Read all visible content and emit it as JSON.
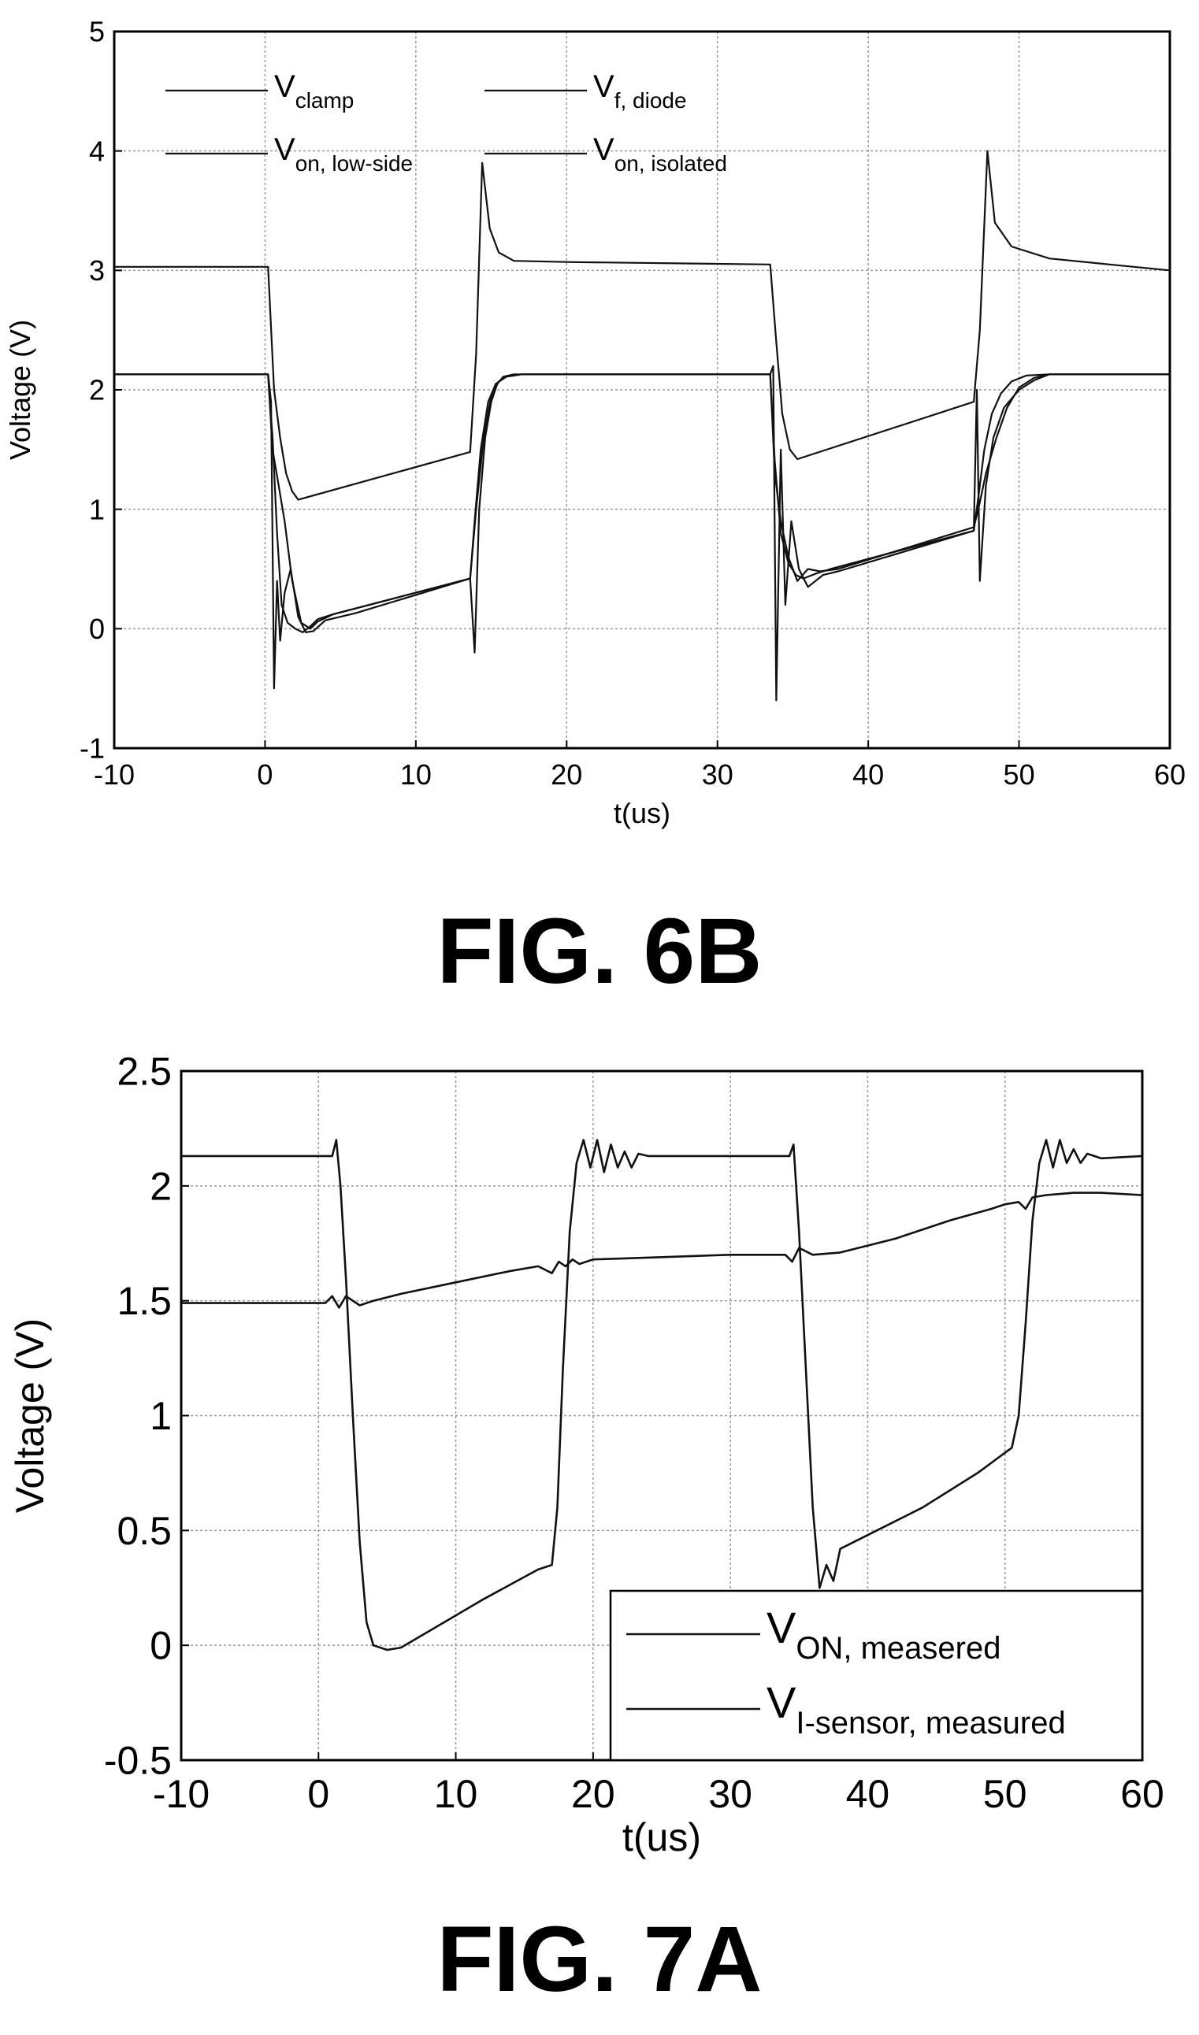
{
  "figures": [
    {
      "caption": "FIG. 6B"
    },
    {
      "caption": "FIG. 7A"
    }
  ],
  "chart_data": [
    {
      "type": "line",
      "title": "",
      "xlabel": "t(us)",
      "ylabel": "Voltage (V)",
      "xlim": [
        -10,
        60
      ],
      "ylim": [
        -1,
        5
      ],
      "xticks": [
        -10,
        0,
        10,
        20,
        30,
        40,
        50,
        60
      ],
      "yticks": [
        -1,
        0,
        1,
        2,
        3,
        4,
        5
      ],
      "grid": true,
      "legend_position": "top-left",
      "legend_columns": 2,
      "series": [
        {
          "name": "V_clamp",
          "label_main": "V",
          "label_sub": "clamp",
          "x": [
            -10,
            0.2,
            0.6,
            1.0,
            1.4,
            1.8,
            2.2,
            13.6,
            14.0,
            14.4,
            14.9,
            15.5,
            16.5,
            20,
            33.5,
            33.9,
            34.3,
            34.8,
            35.3,
            47.0,
            47.4,
            47.9,
            48.4,
            49.5,
            52,
            56,
            60
          ],
          "y": [
            3.03,
            3.03,
            2.0,
            1.6,
            1.3,
            1.15,
            1.08,
            1.48,
            2.3,
            3.9,
            3.35,
            3.15,
            3.08,
            3.07,
            3.05,
            2.4,
            1.8,
            1.5,
            1.42,
            1.9,
            2.5,
            4.0,
            3.4,
            3.2,
            3.1,
            3.05,
            3.0
          ]
        },
        {
          "name": "V_f, diode",
          "label_main": "V",
          "label_sub": "f, diode",
          "x": [
            -10,
            0.2,
            0.5,
            0.8,
            1.1,
            1.5,
            2.0,
            2.5,
            3.0,
            3.5,
            4.5,
            13.6,
            14.0,
            14.5,
            15.0,
            15.5,
            16.0,
            17.0,
            20,
            33.5,
            33.8,
            34.2,
            34.7,
            35.2,
            35.7,
            36.5,
            37.5,
            47.0,
            47.3,
            47.7,
            48.2,
            48.8,
            49.5,
            50.5,
            52,
            60
          ],
          "y": [
            2.13,
            2.13,
            1.6,
            0.8,
            0.2,
            0.05,
            0.0,
            -0.03,
            0.02,
            0.08,
            0.12,
            0.42,
            1.0,
            1.6,
            1.95,
            2.07,
            2.11,
            2.13,
            2.13,
            2.13,
            1.4,
            0.8,
            0.55,
            0.45,
            0.42,
            0.46,
            0.5,
            0.82,
            1.1,
            1.5,
            1.8,
            1.97,
            2.07,
            2.12,
            2.13,
            2.13
          ]
        },
        {
          "name": "V_on, low-side",
          "label_main": "V",
          "label_sub": "on, low-side",
          "x": [
            -10,
            0.2,
            0.4,
            0.6,
            0.8,
            1.0,
            1.3,
            1.7,
            2.2,
            2.7,
            3.2,
            4.0,
            6.0,
            13.6,
            13.9,
            14.2,
            14.6,
            15.0,
            15.4,
            15.8,
            16.5,
            20,
            33.5,
            33.7,
            33.9,
            34.2,
            34.5,
            34.9,
            35.4,
            36.0,
            37.0,
            38.0,
            47.0,
            47.2,
            47.4,
            47.8,
            48.3,
            49.0,
            50.0,
            51.0,
            52.0,
            60
          ],
          "y": [
            2.13,
            2.13,
            1.9,
            -0.5,
            0.4,
            -0.1,
            0.3,
            0.5,
            0.1,
            -0.03,
            -0.02,
            0.07,
            0.13,
            0.42,
            -0.2,
            1.0,
            1.6,
            1.9,
            2.05,
            2.11,
            2.13,
            2.13,
            2.13,
            2.2,
            -0.6,
            1.5,
            0.2,
            0.9,
            0.5,
            0.35,
            0.45,
            0.48,
            0.82,
            2.0,
            0.4,
            1.2,
            1.6,
            1.85,
            2.0,
            2.08,
            2.13,
            2.13
          ]
        },
        {
          "name": "V_on, isolated",
          "label_main": "V",
          "label_sub": "on, isolated",
          "x": [
            -10,
            0.2,
            0.5,
            0.9,
            1.3,
            1.8,
            2.4,
            3.0,
            3.5,
            4.5,
            13.6,
            13.9,
            14.3,
            14.8,
            15.3,
            16.0,
            17.0,
            20,
            33.5,
            33.8,
            34.2,
            34.7,
            35.3,
            36.0,
            36.8,
            38.0,
            47.0,
            47.3,
            47.8,
            48.5,
            49.2,
            50.0,
            51.0,
            52.0,
            60
          ],
          "y": [
            2.13,
            2.13,
            1.5,
            1.2,
            0.9,
            0.4,
            0.05,
            0.0,
            0.06,
            0.12,
            0.42,
            0.9,
            1.5,
            1.9,
            2.05,
            2.11,
            2.13,
            2.13,
            2.13,
            1.3,
            0.9,
            0.6,
            0.4,
            0.5,
            0.48,
            0.5,
            0.85,
            1.0,
            1.3,
            1.6,
            1.85,
            2.02,
            2.1,
            2.13,
            2.13
          ]
        }
      ]
    },
    {
      "type": "line",
      "title": "",
      "xlabel": "t(us)",
      "ylabel": "Voltage (V)",
      "xlim": [
        -10,
        60
      ],
      "ylim": [
        -0.5,
        2.5
      ],
      "xticks": [
        -10,
        0,
        10,
        20,
        30,
        40,
        50,
        60
      ],
      "yticks": [
        -0.5,
        0,
        0.5,
        1,
        1.5,
        2,
        2.5
      ],
      "ytick_labels": [
        "-0.5",
        "0",
        "0.5",
        "1",
        "1.5",
        "2",
        "2.5"
      ],
      "grid": true,
      "legend_position": "bottom-right",
      "legend_columns": 1,
      "series": [
        {
          "name": "V_ON, measered",
          "label_main": "V",
          "label_sub": "ON, measered",
          "x": [
            -10,
            1.0,
            1.3,
            1.6,
            2.0,
            2.5,
            3.0,
            3.5,
            4.0,
            5.0,
            6.0,
            8.0,
            12.0,
            16.0,
            17.0,
            17.4,
            17.8,
            18.3,
            18.8,
            19.3,
            19.8,
            20.3,
            20.8,
            21.3,
            21.8,
            22.3,
            22.8,
            23.3,
            24,
            34.3,
            34.6,
            35.0,
            35.5,
            36.0,
            36.5,
            37.0,
            37.5,
            38.0,
            40.0,
            44.0,
            48.0,
            50.5,
            51.0,
            51.5,
            52.0,
            52.5,
            53.0,
            53.5,
            54.0,
            54.5,
            55.0,
            55.5,
            56.0,
            57,
            60
          ],
          "y": [
            2.13,
            2.13,
            2.2,
            2.0,
            1.6,
            1.0,
            0.45,
            0.1,
            0.0,
            -0.02,
            -0.01,
            0.06,
            0.2,
            0.33,
            0.35,
            0.6,
            1.2,
            1.8,
            2.1,
            2.2,
            2.08,
            2.2,
            2.06,
            2.18,
            2.08,
            2.15,
            2.08,
            2.14,
            2.13,
            2.13,
            2.18,
            1.8,
            1.2,
            0.6,
            0.25,
            0.35,
            0.28,
            0.42,
            0.48,
            0.6,
            0.75,
            0.86,
            1.0,
            1.4,
            1.85,
            2.1,
            2.2,
            2.08,
            2.2,
            2.1,
            2.16,
            2.1,
            2.14,
            2.12,
            2.13
          ]
        },
        {
          "name": "V_I-sensor, measured",
          "label_main": "V",
          "label_sub": "I-sensor, measured",
          "x": [
            -10,
            0.5,
            1.0,
            1.5,
            2.0,
            3.0,
            4.0,
            6.0,
            10.0,
            14.0,
            16.0,
            17.0,
            17.5,
            18.0,
            18.5,
            19.0,
            20.0,
            25.0,
            30.0,
            34.0,
            34.5,
            35.0,
            36.0,
            38.0,
            42.0,
            46.0,
            49.0,
            50.0,
            51.0,
            51.5,
            52.0,
            53.0,
            55.0,
            57.0,
            60.0
          ],
          "y": [
            1.49,
            1.49,
            1.52,
            1.47,
            1.52,
            1.48,
            1.5,
            1.53,
            1.58,
            1.63,
            1.65,
            1.62,
            1.67,
            1.65,
            1.68,
            1.66,
            1.68,
            1.69,
            1.7,
            1.7,
            1.67,
            1.73,
            1.7,
            1.71,
            1.77,
            1.85,
            1.9,
            1.92,
            1.93,
            1.9,
            1.95,
            1.96,
            1.97,
            1.97,
            1.96
          ]
        }
      ]
    }
  ]
}
